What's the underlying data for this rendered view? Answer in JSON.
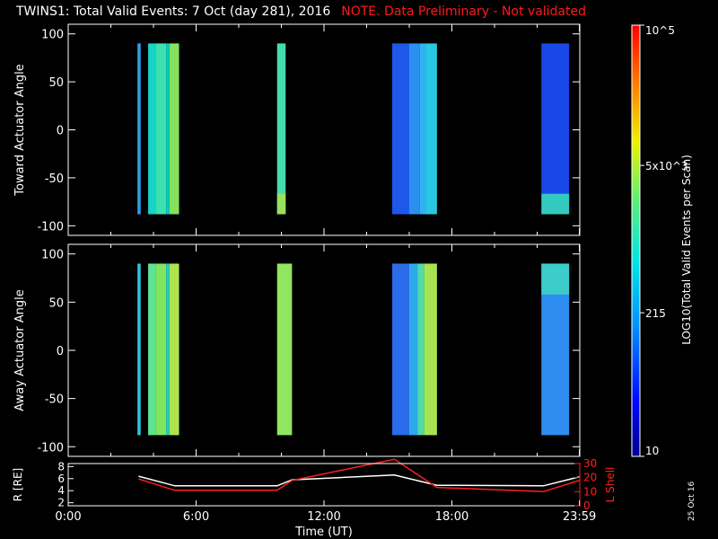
{
  "title": "TWINS1: Total Valid Events:  7 Oct (day 281), 2016",
  "note": "NOTE. Data Preliminary - Not validated",
  "date_stamp": "25 Oct 16",
  "chart_data": [
    {
      "type": "heatmap",
      "ylabel": "Toward Actuator Angle",
      "ylim": [
        -110,
        110
      ],
      "yticks": [
        100,
        50,
        0,
        -50,
        -100
      ],
      "xlim": [
        0,
        24
      ],
      "angle_range": [
        -88,
        90
      ],
      "bands": [
        {
          "start": 3.25,
          "end": 3.4,
          "color": "#2f9fea"
        },
        {
          "start": 3.75,
          "end": 4.1,
          "color": "#18d4c8"
        },
        {
          "start": 4.1,
          "end": 4.6,
          "color": "#3ee0b2"
        },
        {
          "start": 4.6,
          "end": 4.75,
          "color": "#00d0c0"
        },
        {
          "start": 4.75,
          "end": 5.2,
          "color": "#84e25c"
        },
        {
          "start": 9.8,
          "end": 10.2,
          "color": "#44dcb0",
          "bottom_color": "#a8e050"
        },
        {
          "start": 15.2,
          "end": 16.0,
          "color": "#1e58ea"
        },
        {
          "start": 16.0,
          "end": 16.5,
          "color": "#2c8ff0"
        },
        {
          "start": 16.5,
          "end": 16.8,
          "color": "#30b2f0"
        },
        {
          "start": 16.8,
          "end": 17.3,
          "color": "#28c8e0"
        },
        {
          "start": 22.2,
          "end": 23.5,
          "color": "#1a48e8",
          "bottom_color": "#38e0b6"
        }
      ]
    },
    {
      "type": "heatmap",
      "ylabel": "Away Actuator Angle",
      "ylim": [
        -110,
        110
      ],
      "yticks": [
        100,
        50,
        0,
        -50,
        -100
      ],
      "xlim": [
        0,
        24
      ],
      "angle_range": [
        -88,
        90
      ],
      "bands": [
        {
          "start": 3.25,
          "end": 3.4,
          "color": "#30c4dc"
        },
        {
          "start": 3.75,
          "end": 4.1,
          "color": "#5ee494"
        },
        {
          "start": 4.1,
          "end": 4.6,
          "color": "#80e660"
        },
        {
          "start": 4.6,
          "end": 4.75,
          "color": "#1ed2c2"
        },
        {
          "start": 4.75,
          "end": 5.2,
          "color": "#aee44e"
        },
        {
          "start": 9.8,
          "end": 10.5,
          "color": "#90e65e"
        },
        {
          "start": 15.2,
          "end": 16.0,
          "color": "#2a6cea"
        },
        {
          "start": 16.0,
          "end": 16.4,
          "color": "#30a8ee"
        },
        {
          "start": 16.4,
          "end": 16.7,
          "color": "#50dca6"
        },
        {
          "start": 16.7,
          "end": 17.3,
          "color": "#a8e452"
        },
        {
          "start": 22.2,
          "end": 23.5,
          "color": "#2e8ef0",
          "top_color": "#40dcc0"
        }
      ]
    },
    {
      "type": "line",
      "ylabel": "R [RE]",
      "y2label": "L Shell",
      "xlabel": "Time (UT)",
      "xlim": [
        0,
        24
      ],
      "ylim": [
        1.5,
        8.5
      ],
      "yticks": [
        2,
        4,
        6,
        8
      ],
      "y2lim": [
        0,
        30
      ],
      "y2ticks": [
        0,
        10,
        20,
        30
      ],
      "xticks": [
        0,
        6,
        12,
        18,
        23.983
      ],
      "xtick_labels": [
        "0:00",
        "6:00",
        "12:00",
        "18:00",
        "23:59"
      ],
      "series": [
        {
          "axis": "left",
          "color": "#ffffff",
          "x": [
            3.3,
            5.0,
            9.8,
            10.5,
            15.3,
            17.3,
            22.3,
            23.98
          ],
          "y": [
            6.4,
            4.8,
            4.8,
            5.8,
            6.6,
            4.9,
            4.8,
            6.3
          ]
        },
        {
          "axis": "right",
          "color": "#ff2020",
          "x": [
            3.3,
            5.0,
            9.8,
            10.5,
            15.3,
            17.3,
            22.3,
            23.98
          ],
          "y": [
            19,
            11,
            11,
            18,
            33,
            13,
            10,
            18
          ]
        }
      ]
    }
  ],
  "colorbar": {
    "label": "LOG10(Total Valid Events per Scan)",
    "ticks": [
      {
        "label": "10",
        "value": 10
      },
      {
        "label": "215",
        "value": 215
      },
      {
        "label": "5x10^3",
        "value": 5000
      },
      {
        "label": "10^5",
        "value": 100000
      }
    ],
    "range": [
      10,
      100000
    ]
  }
}
